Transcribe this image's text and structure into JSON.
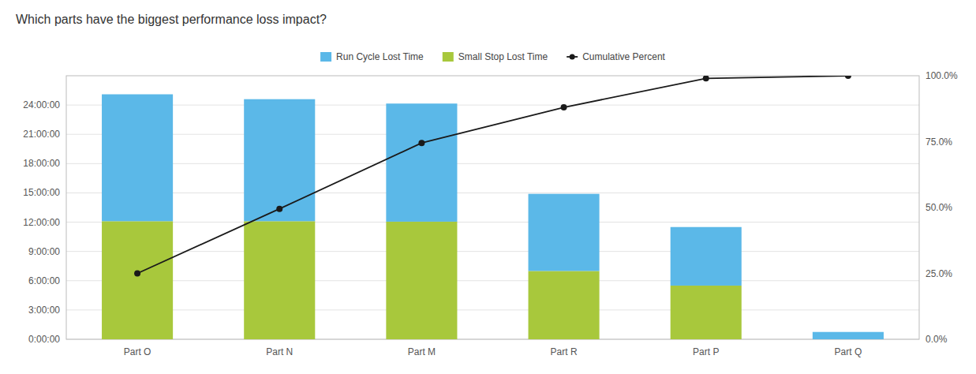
{
  "chart_data": {
    "type": "bar",
    "title": "Which parts have the biggest performance loss impact?",
    "categories": [
      "Part O",
      "Part N",
      "Part M",
      "Part R",
      "Part P",
      "Part Q"
    ],
    "stacked": true,
    "grid": true,
    "legend": "top",
    "ylim": [
      0,
      27
    ],
    "yticks": [
      {
        "value": 0,
        "label": "0:00:00"
      },
      {
        "value": 3,
        "label": "3:00:00"
      },
      {
        "value": 6,
        "label": "6:00:00"
      },
      {
        "value": 9,
        "label": "9:00:00"
      },
      {
        "value": 12,
        "label": "12:00:00"
      },
      {
        "value": 15,
        "label": "15:00:00"
      },
      {
        "value": 18,
        "label": "18:00:00"
      },
      {
        "value": 21,
        "label": "21:00:00"
      },
      {
        "value": 24,
        "label": "24:00:00"
      }
    ],
    "y2lim": [
      0,
      100
    ],
    "y2ticks": [
      {
        "value": 0.0,
        "label": "0.0%"
      },
      {
        "value": 25.0,
        "label": "25.0%"
      },
      {
        "value": 50.0,
        "label": "50.0%"
      },
      {
        "value": 75.0,
        "label": "75.0%"
      },
      {
        "value": 100.0,
        "label": "100.0%"
      }
    ],
    "series": [
      {
        "name": "Small Stop Lost Time",
        "color": "#a8c83c",
        "values": [
          12.1,
          12.1,
          12.05,
          7.0,
          5.5,
          0.0
        ]
      },
      {
        "name": "Run Cycle Lost Time",
        "color": "#5bb8e8",
        "values": [
          13.0,
          12.5,
          12.1,
          7.9,
          6.0,
          0.75
        ]
      },
      {
        "name": "Cumulative Percent",
        "type": "line",
        "axis": "y2",
        "color": "#1a1a1a",
        "marker": "circle",
        "line_style": "solid",
        "values": [
          25.0,
          49.5,
          74.5,
          88.0,
          99.0,
          100.0
        ]
      }
    ]
  }
}
